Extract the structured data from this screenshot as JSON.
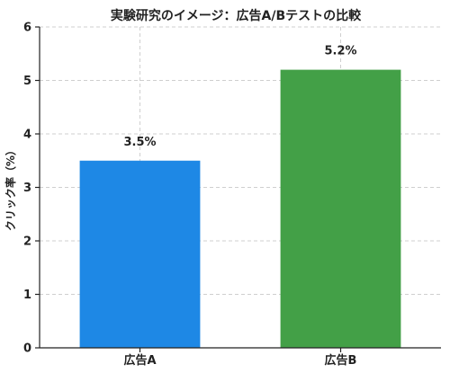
{
  "chart_data": {
    "type": "bar",
    "title": "実験研究のイメージ：広告A/Bテストの比較",
    "xlabel": "",
    "ylabel": "クリック率（%）",
    "categories": [
      "広告A",
      "広告B"
    ],
    "values": [
      3.5,
      5.2
    ],
    "data_labels": [
      "3.5%",
      "5.2%"
    ],
    "colors": [
      "#1e88e5",
      "#43a047"
    ],
    "ylim": [
      0,
      6
    ],
    "yticks": [
      0,
      1,
      2,
      3,
      4,
      5,
      6
    ],
    "grid": true
  }
}
